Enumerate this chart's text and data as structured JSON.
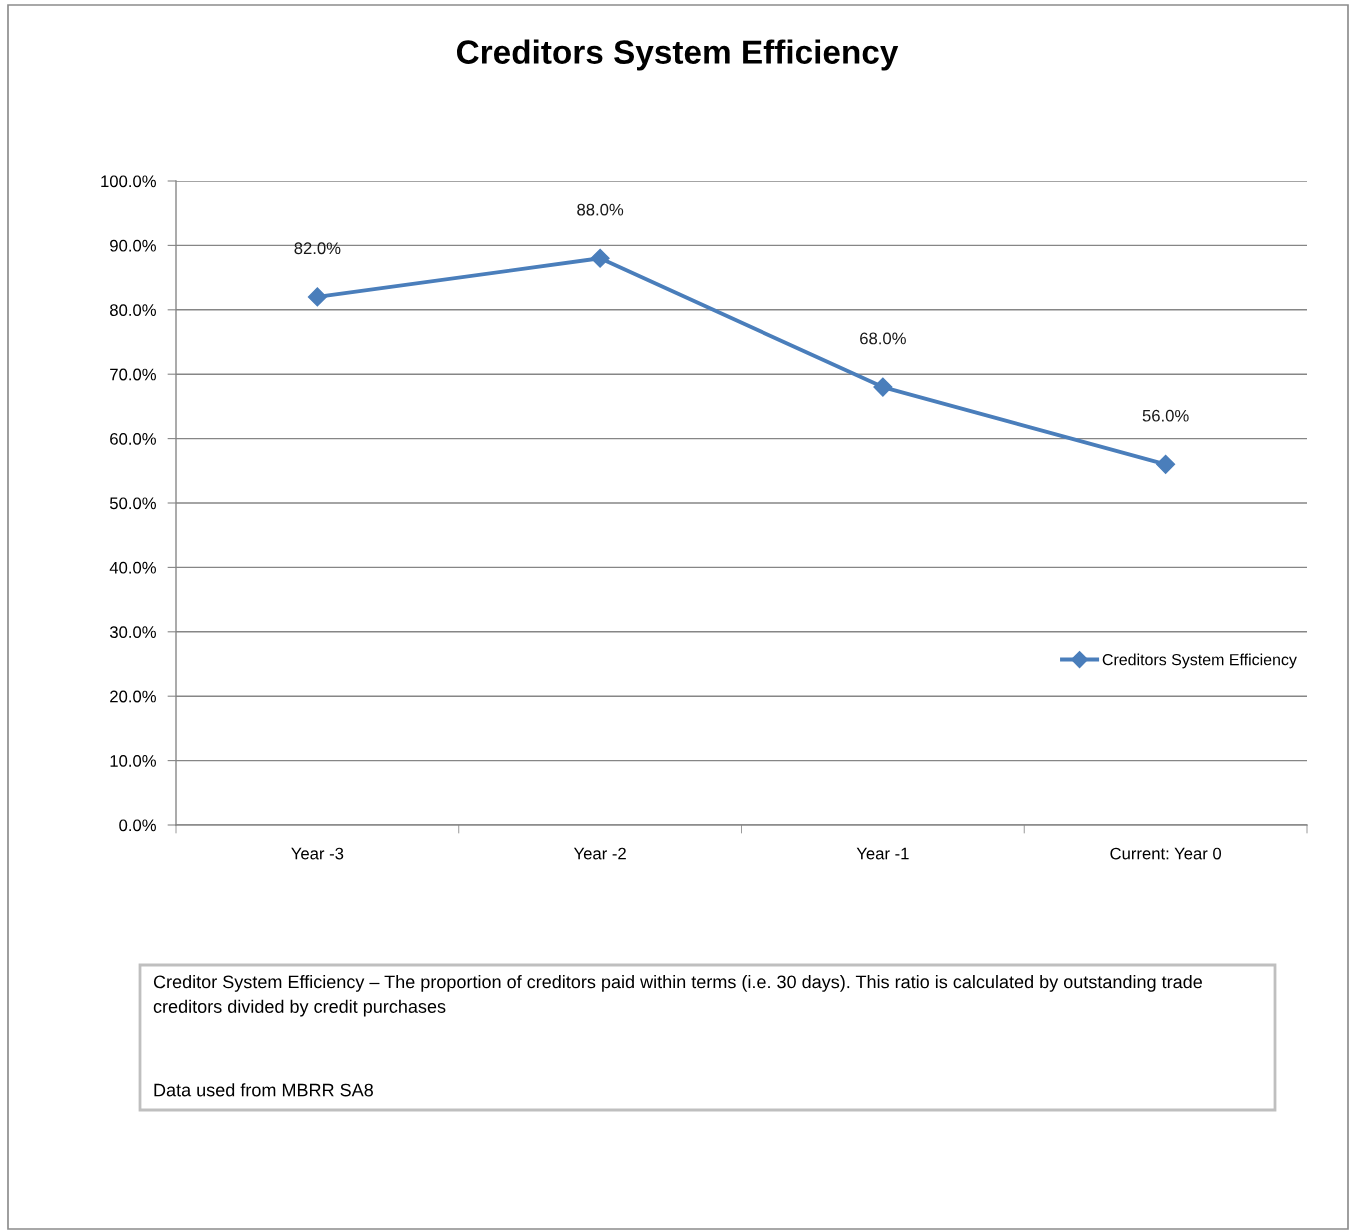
{
  "chart_data": {
    "type": "line",
    "title": "Creditors System Efficiency",
    "categories": [
      "Year -3",
      "Year -2",
      "Year -1",
      "Current: Year 0"
    ],
    "series": [
      {
        "name": "Creditors System Efficiency",
        "color": "#4a7ebb",
        "values": [
          82,
          88,
          68,
          56
        ],
        "value_labels": [
          "82.0%",
          "88.0%",
          "68.0%",
          "56.0%"
        ]
      }
    ],
    "ylim": [
      0,
      100
    ],
    "yticks": [
      {
        "value": 0,
        "label": "0.0%"
      },
      {
        "value": 10,
        "label": "10.0%"
      },
      {
        "value": 20,
        "label": "20.0%"
      },
      {
        "value": 30,
        "label": "30.0%"
      },
      {
        "value": 40,
        "label": "40.0%"
      },
      {
        "value": 50,
        "label": "50.0%"
      },
      {
        "value": 60,
        "label": "60.0%"
      },
      {
        "value": 70,
        "label": "70.0%"
      },
      {
        "value": 80,
        "label": "80.0%"
      },
      {
        "value": 90,
        "label": "90.0%"
      },
      {
        "value": 100,
        "label": "100.0%"
      }
    ],
    "grid": "y",
    "legend": "right",
    "marker": "diamond",
    "line_style": "solid",
    "annotations": [
      "Creditor System Efficiency – The proportion of creditors paid within terms (i.e. 30 days). This ratio is calculated by outstanding trade creditors divided by credit purchases",
      "Data used from MBRR SA8"
    ]
  }
}
